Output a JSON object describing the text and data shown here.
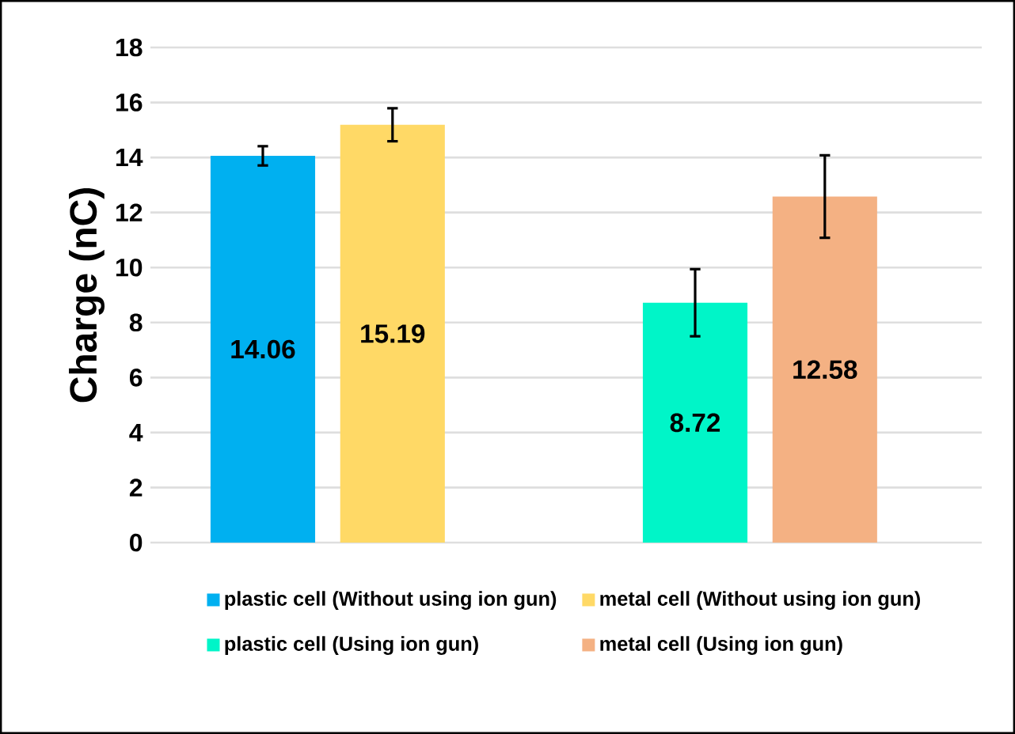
{
  "chart_data": {
    "type": "bar",
    "ylabel": "Charge (nC)",
    "categories": [
      null,
      null
    ],
    "series": [
      {
        "name": "plastic cell (Without using ion gun)",
        "color": "#00b0f0",
        "values": [
          14.06,
          null
        ],
        "errors": [
          0.35,
          null
        ]
      },
      {
        "name": "metal cell (Without using ion gun)",
        "color": "#ffd966",
        "values": [
          15.19,
          null
        ],
        "errors": [
          0.6,
          null
        ]
      },
      {
        "name": "plastic cell (Using ion gun)",
        "color": "#00f5c8",
        "values": [
          null,
          8.72
        ],
        "errors": [
          null,
          1.22
        ]
      },
      {
        "name": "metal cell (Using ion gun)",
        "color": "#f4b183",
        "values": [
          null,
          12.58
        ],
        "errors": [
          null,
          1.5
        ]
      }
    ],
    "ylim": [
      0,
      18
    ],
    "yticks": [
      0,
      2,
      4,
      6,
      8,
      10,
      12,
      14,
      16,
      18
    ],
    "grid": "y",
    "legend": "bottom",
    "data_labels": true
  }
}
